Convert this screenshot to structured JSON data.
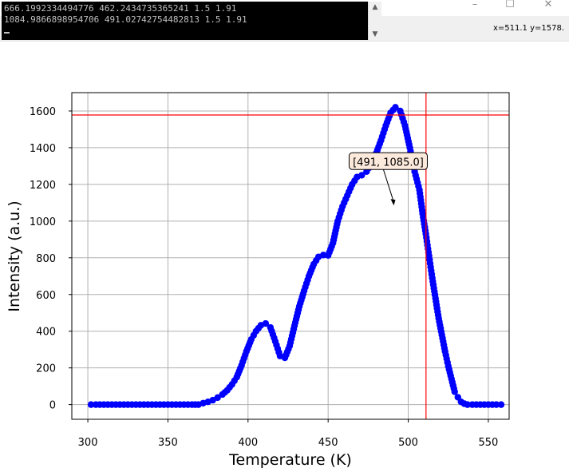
{
  "window": {
    "minimize_glyph": "–",
    "maximize_glyph": "☐",
    "close_glyph": "✕"
  },
  "console": {
    "lines": [
      "666.1992334494776 462.2434735365241 1.5 1.91",
      "1084.9866898954706 491.02742754482813 1.5 1.91"
    ]
  },
  "toolbar": {
    "coords": "x=511.1 y=1578."
  },
  "colors": {
    "series": "#0000ff",
    "crosshair": "#ff0000",
    "grid": "#b0b0b0",
    "annotation_bg": "#fbe9dc"
  },
  "chart_data": {
    "type": "scatter",
    "title": "",
    "xlabel": "Temperature (K)",
    "ylabel": "Intensity  (a.u.)",
    "xlim": [
      290,
      563
    ],
    "ylim": [
      -80,
      1700
    ],
    "xticks": [
      300,
      350,
      400,
      450,
      500,
      550
    ],
    "yticks": [
      0,
      200,
      400,
      600,
      800,
      1000,
      1200,
      1400,
      1600
    ],
    "grid": true,
    "crosshair": {
      "x": 511.1,
      "y": 1578
    },
    "annotation": {
      "text": "[491, 1085.0]",
      "x": 491,
      "y": 1085
    },
    "series": [
      {
        "marker": "circle",
        "x": [
          302,
          305,
          310,
          315,
          320,
          325,
          330,
          335,
          340,
          345,
          350,
          355,
          360,
          365,
          369,
          372,
          375,
          378,
          381,
          384,
          387,
          390,
          393,
          396,
          399,
          402,
          405,
          408,
          411,
          414,
          417,
          420,
          423,
          426,
          429,
          432,
          435,
          438,
          441,
          444,
          447,
          450,
          453,
          456,
          459,
          462,
          465,
          468,
          471,
          474,
          477,
          480,
          483,
          486,
          489,
          492,
          495,
          498,
          501,
          504,
          507,
          509,
          511,
          513,
          515,
          517,
          519,
          521,
          523,
          525,
          527,
          529,
          531,
          533,
          535,
          537,
          540,
          545,
          550,
          555,
          558
        ],
        "y": [
          0,
          0,
          0,
          0,
          0,
          0,
          0,
          0,
          0,
          0,
          0,
          0,
          0,
          0,
          0,
          8,
          15,
          24,
          38,
          55,
          78,
          110,
          150,
          215,
          290,
          355,
          400,
          432,
          442,
          420,
          345,
          265,
          255,
          320,
          430,
          535,
          620,
          700,
          765,
          805,
          815,
          813,
          880,
          1000,
          1080,
          1140,
          1200,
          1240,
          1250,
          1270,
          1310,
          1370,
          1440,
          1520,
          1590,
          1620,
          1600,
          1520,
          1400,
          1270,
          1170,
          1040,
          930,
          810,
          690,
          580,
          470,
          380,
          290,
          210,
          140,
          70,
          40,
          15,
          5,
          0,
          0,
          0,
          0,
          0,
          0
        ]
      }
    ]
  }
}
